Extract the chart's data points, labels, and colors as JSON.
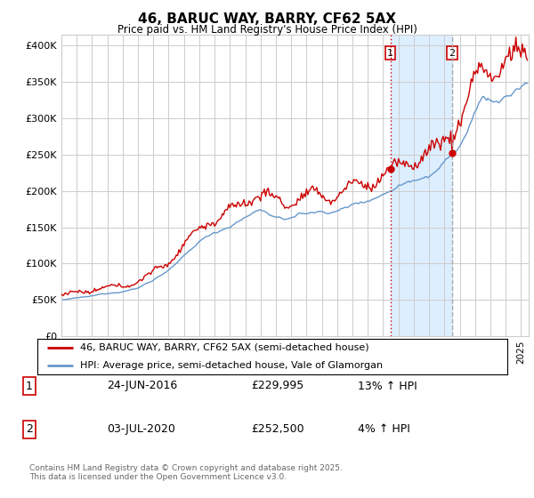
{
  "title": "46, BARUC WAY, BARRY, CF62 5AX",
  "subtitle": "Price paid vs. HM Land Registry's House Price Index (HPI)",
  "ylabel_ticks": [
    "£0",
    "£50K",
    "£100K",
    "£150K",
    "£200K",
    "£250K",
    "£300K",
    "£350K",
    "£400K"
  ],
  "ytick_vals": [
    0,
    50000,
    100000,
    150000,
    200000,
    250000,
    300000,
    350000,
    400000
  ],
  "ylim": [
    0,
    415000
  ],
  "xlim_start": 1995,
  "xlim_end": 2025.5,
  "transaction1": {
    "label": "1",
    "date": "24-JUN-2016",
    "price": 229995,
    "price_str": "£229,995",
    "hpi_change": "13% ↑ HPI",
    "year": 2016.48,
    "vline_color": "#cc0000",
    "vline_style": "dotted"
  },
  "transaction2": {
    "label": "2",
    "date": "03-JUL-2020",
    "price": 252500,
    "price_str": "£252,500",
    "hpi_change": "4% ↑ HPI",
    "year": 2020.51,
    "vline_color": "#888888",
    "vline_style": "dashed"
  },
  "line_price_color": "#cc0000",
  "line_hpi_color": "#6699cc",
  "shade_color": "#ddeeff",
  "legend_price_label": "46, BARUC WAY, BARRY, CF62 5AX (semi-detached house)",
  "legend_hpi_label": "HPI: Average price, semi-detached house, Vale of Glamorgan",
  "footer": "Contains HM Land Registry data © Crown copyright and database right 2025.\nThis data is licensed under the Open Government Licence v3.0.",
  "background_color": "#ffffff",
  "grid_color": "#cccccc"
}
